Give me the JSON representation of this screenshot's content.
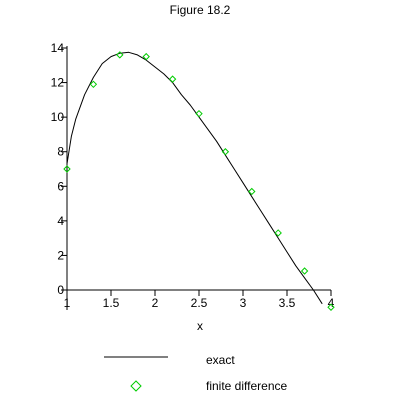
{
  "chart_data": {
    "type": "line",
    "title": "Figure 18.2",
    "xlabel": "x",
    "ylabel": "",
    "xlim": [
      1,
      4
    ],
    "ylim": [
      0,
      14
    ],
    "x_ticks": [
      "1",
      "1.5",
      "2",
      "2.5",
      "3",
      "3.5",
      "4"
    ],
    "x_tick_values": [
      1,
      1.5,
      2,
      2.5,
      3,
      3.5,
      4
    ],
    "y_ticks": [
      "0",
      "2",
      "4",
      "6",
      "8",
      "10",
      "12",
      "14"
    ],
    "y_tick_values": [
      0,
      2,
      4,
      6,
      8,
      10,
      12,
      14
    ],
    "grid": false,
    "legend_placement": "bottom",
    "series": [
      {
        "name": "exact",
        "style": "line",
        "color": "#000000",
        "x": [
          1.0,
          1.05,
          1.1,
          1.2,
          1.3,
          1.4,
          1.5,
          1.6,
          1.7,
          1.8,
          1.9,
          2.0,
          2.1,
          2.2,
          2.3,
          2.4,
          2.5,
          2.6,
          2.7,
          2.8,
          2.9,
          3.0,
          3.1,
          3.2,
          3.3,
          3.4,
          3.5,
          3.6,
          3.7,
          3.8,
          3.9
        ],
        "y": [
          7.3,
          8.9,
          9.9,
          11.3,
          12.3,
          13.1,
          13.5,
          13.7,
          13.75,
          13.6,
          13.3,
          12.9,
          12.5,
          12.0,
          11.3,
          10.7,
          10.0,
          9.3,
          8.6,
          7.8,
          7.0,
          6.2,
          5.4,
          4.6,
          3.8,
          3.0,
          2.2,
          1.4,
          0.7,
          0.0,
          -0.8
        ]
      },
      {
        "name": "finite difference",
        "style": "markers",
        "marker": "diamond",
        "color": "#00cc00",
        "x": [
          1.0,
          1.3,
          1.6,
          1.9,
          2.2,
          2.5,
          2.8,
          3.1,
          3.4,
          3.7,
          4.0
        ],
        "y": [
          7.0,
          11.9,
          13.6,
          13.5,
          12.2,
          10.2,
          8.0,
          5.7,
          3.3,
          1.1,
          -1.0
        ]
      }
    ]
  }
}
